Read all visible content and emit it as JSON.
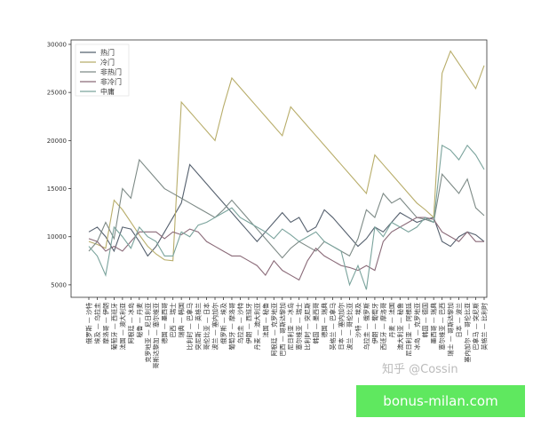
{
  "chart_data": {
    "type": "line",
    "categories": [
      "俄罗斯 — 沙特",
      "埃及 — 乌拉圭",
      "摩洛哥 — 伊朗",
      "葡萄牙 — 西班牙",
      "法国 — 澳大利亚",
      "阿根廷 — 冰岛",
      "秘鲁 — 丹麦",
      "克罗地亚 — 尼日利亚",
      "哥斯达黎加 — 塞尔维亚",
      "德国 — 墨西哥",
      "巴西 — 瑞士",
      "瑞典 — 韩国",
      "比利时 — 巴拿马",
      "突尼斯 — 英格兰",
      "哥伦比亚 — 日本",
      "波兰 — 塞内加尔",
      "俄罗斯 — 埃及",
      "葡萄牙 — 摩洛哥",
      "乌拉圭 — 沙特",
      "伊朗 — 西班牙",
      "丹麦 — 澳大利亚",
      "法国 — 秘鲁",
      "阿根廷 — 克罗地亚",
      "巴西 — 哥斯达黎加",
      "尼日利亚 — 冰岛",
      "塞尔维亚 — 瑞士",
      "比利时 — 突尼斯",
      "韩国 — 墨西哥",
      "德国 — 瑞典",
      "英格兰 — 巴拿马",
      "日本 — 塞内加尔",
      "波兰 — 哥伦比亚",
      "沙特 — 埃及",
      "乌拉圭 — 俄罗斯",
      "伊朗 — 葡萄牙",
      "西班牙 — 摩洛哥",
      "丹麦 — 法国",
      "澳大利亚 — 秘鲁",
      "尼日利亚 — 阿根廷",
      "冰岛 — 克罗地亚",
      "韩国 — 德国",
      "墨西哥 — 瑞典",
      "塞尔维亚 — 巴西",
      "瑞士 — 哥斯达黎加",
      "日本 — 波兰",
      "塞内加尔 — 哥伦比亚",
      "巴拿马 — 突尼斯",
      "英格兰 — 比利时"
    ],
    "series": [
      {
        "name": "热门",
        "color": "#55606e",
        "values": [
          10500,
          11000,
          10000,
          8500,
          11000,
          10800,
          9500,
          8000,
          9000,
          10500,
          12000,
          13500,
          17500,
          16500,
          15500,
          14500,
          13500,
          12500,
          11500,
          10500,
          9500,
          10500,
          11500,
          12500,
          11500,
          12000,
          10500,
          11000,
          12800,
          12000,
          11000,
          10000,
          9000,
          9800,
          11000,
          10500,
          11500,
          12500,
          12000,
          11500,
          11800,
          12000,
          9500,
          9000,
          10000,
          10500,
          10200,
          9500
        ]
      },
      {
        "name": "冷门",
        "color": "#b8ad6a",
        "values": [
          9500,
          9200,
          8800,
          13800,
          12800,
          11500,
          10200,
          9000,
          8200,
          7600,
          7500,
          24000,
          23000,
          22000,
          21000,
          20000,
          23500,
          26500,
          25500,
          24500,
          23500,
          22500,
          21500,
          20500,
          23500,
          22500,
          21500,
          20500,
          19500,
          18500,
          17500,
          16500,
          15500,
          14500,
          18500,
          17500,
          16500,
          15500,
          14500,
          13500,
          12800,
          12000,
          27000,
          29300,
          28000,
          26700,
          25400,
          27800
        ]
      },
      {
        "name": "非热门",
        "color": "#7d8a86",
        "values": [
          8500,
          9500,
          11500,
          9800,
          15000,
          14000,
          18000,
          17000,
          16000,
          15000,
          14500,
          14000,
          13500,
          13000,
          12500,
          12000,
          12800,
          13800,
          12800,
          11800,
          10800,
          9800,
          8800,
          7800,
          8800,
          9500,
          9000,
          8500,
          9500,
          9000,
          8500,
          8000,
          9800,
          12800,
          12000,
          14500,
          13500,
          14000,
          13000,
          12000,
          11800,
          11500,
          16500,
          15500,
          14500,
          16000,
          13000,
          12200
        ]
      },
      {
        "name": "非冷门",
        "color": "#8a6a78",
        "values": [
          9800,
          9500,
          8500,
          9000,
          8500,
          9500,
          10500,
          10500,
          10500,
          9800,
          10500,
          10200,
          10800,
          10500,
          9500,
          9000,
          8500,
          8000,
          8000,
          7500,
          7000,
          6000,
          7500,
          6500,
          6000,
          5500,
          7500,
          8800,
          8000,
          7500,
          7000,
          6800,
          6500,
          7000,
          6500,
          9500,
          10500,
          11000,
          11500,
          12000,
          12000,
          11800,
          10500,
          10000,
          9500,
          10500,
          9500,
          9500
        ]
      },
      {
        "name": "中庸",
        "color": "#7aa39c",
        "values": [
          9000,
          8000,
          6000,
          11000,
          10000,
          8800,
          11000,
          10000,
          9500,
          8000,
          8000,
          10500,
          10000,
          11200,
          11500,
          12000,
          12500,
          13000,
          12000,
          11500,
          11000,
          10500,
          9800,
          10800,
          10200,
          9500,
          10000,
          10500,
          9500,
          9000,
          8500,
          5000,
          7000,
          4500,
          11000,
          10000,
          11500,
          11000,
          10500,
          11000,
          12000,
          11500,
          19500,
          19000,
          18000,
          19500,
          18500,
          17000
        ]
      }
    ],
    "ylim": [
      3700,
      30460
    ],
    "yticks": [
      5000,
      10000,
      15000,
      20000,
      25000,
      30000
    ],
    "legend": "upper-left",
    "watermark": "知乎 @Cossin",
    "badge": "bonus-milan.com"
  }
}
